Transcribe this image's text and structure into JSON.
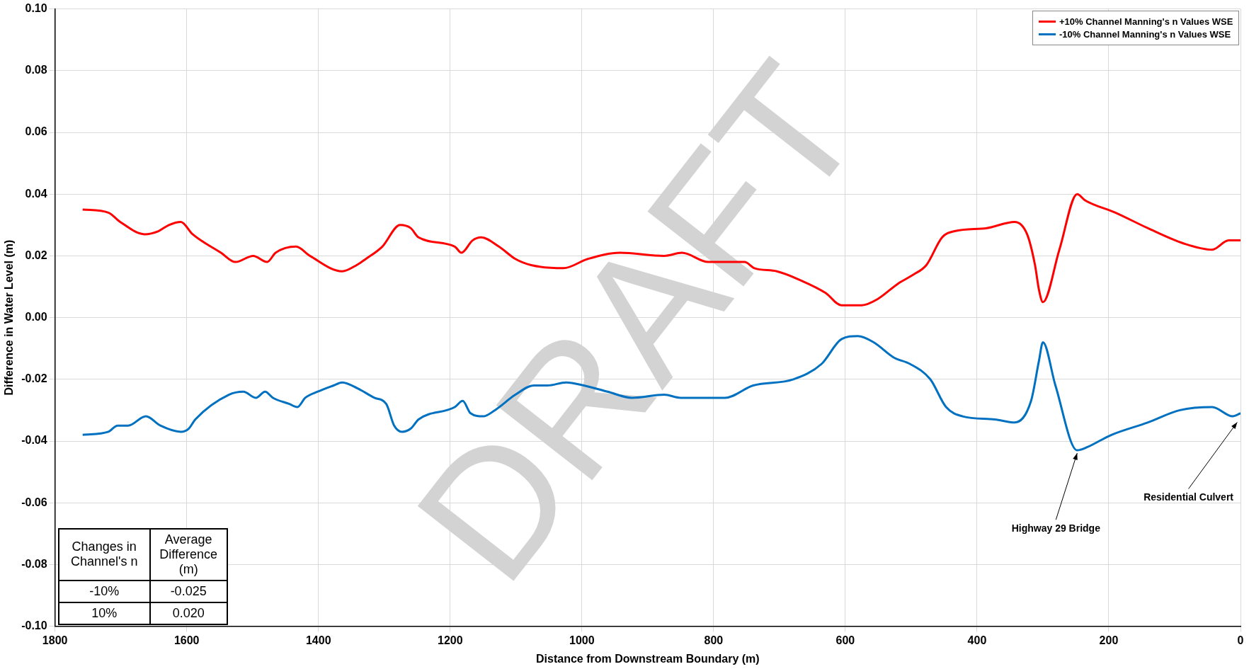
{
  "chart_data": {
    "type": "line",
    "xlabel": "Distance from Downstream Boundary (m)",
    "ylabel": "Difference in Water Level (m)",
    "xlim": [
      1800,
      0
    ],
    "xticks": [
      1800,
      1600,
      1400,
      1200,
      1000,
      800,
      600,
      400,
      200,
      0
    ],
    "ylim": [
      -0.1,
      0.1
    ],
    "yticks": [
      {
        "value": -0.1,
        "label": "-0.10"
      },
      -0.08,
      -0.06,
      -0.04,
      -0.02,
      {
        "value": 0,
        "label": "0.00"
      },
      0.02,
      0.04,
      0.06,
      0.08,
      {
        "value": 0.1,
        "label": "0.10"
      }
    ],
    "grid": true,
    "legend": "top right",
    "marker": "none",
    "line_style": "solid",
    "series": [
      {
        "name": "+10% Channel Manning's n Values WSE",
        "color": "#ff0000",
        "x": [
          1758,
          1719,
          1701,
          1664,
          1643,
          1627,
          1609,
          1591,
          1548,
          1526,
          1499,
          1478,
          1465,
          1434,
          1413,
          1364,
          1342,
          1328,
          1303,
          1276,
          1260,
          1248,
          1193,
          1183,
          1166,
          1153,
          1126,
          1101,
          1077,
          1028,
          991,
          942,
          875,
          848,
          808,
          753,
          738,
          704,
          667,
          630,
          606,
          575,
          551,
          520,
          496,
          477,
          453,
          434,
          385,
          343,
          324,
          312,
          306,
          300,
          275,
          248,
          236,
          190,
          141,
          86,
          43,
          18,
          0
        ],
        "values": [
          0.035,
          0.034,
          0.031,
          0.027,
          0.028,
          0.03,
          0.031,
          0.027,
          0.021,
          0.018,
          0.02,
          0.018,
          0.021,
          0.023,
          0.02,
          0.015,
          0.017,
          0.019,
          0.023,
          0.03,
          0.029,
          0.026,
          0.023,
          0.021,
          0.025,
          0.026,
          0.023,
          0.019,
          0.017,
          0.016,
          0.019,
          0.021,
          0.02,
          0.021,
          0.018,
          0.018,
          0.016,
          0.015,
          0.012,
          0.008,
          0.004,
          0.004,
          0.006,
          0.011,
          0.014,
          0.017,
          0.026,
          0.028,
          0.029,
          0.031,
          0.027,
          0.017,
          0.009,
          0.005,
          0.022,
          0.04,
          0.038,
          0.034,
          0.029,
          0.024,
          0.022,
          0.025,
          0.025
        ]
      },
      {
        "name": "-10% Channel Manning's n Values WSE",
        "color": "#0070c0",
        "x": [
          1758,
          1719,
          1705,
          1689,
          1662,
          1640,
          1609,
          1597,
          1587,
          1536,
          1514,
          1495,
          1481,
          1469,
          1444,
          1432,
          1420,
          1401,
          1377,
          1364,
          1340,
          1315,
          1297,
          1285,
          1273,
          1260,
          1248,
          1193,
          1181,
          1169,
          1150,
          1132,
          1101,
          1073,
          1052,
          1024,
          997,
          961,
          924,
          875,
          850,
          820,
          783,
          740,
          679,
          636,
          606,
          581,
          557,
          526,
          502,
          471,
          447,
          422,
          373,
          343,
          318,
          306,
          300,
          281,
          248,
          233,
          196,
          141,
          92,
          43,
          12,
          0
        ],
        "values": [
          -0.038,
          -0.037,
          -0.035,
          -0.035,
          -0.032,
          -0.035,
          -0.037,
          -0.036,
          -0.033,
          -0.025,
          -0.024,
          -0.026,
          -0.024,
          -0.026,
          -0.028,
          -0.029,
          -0.026,
          -0.024,
          -0.022,
          -0.021,
          -0.023,
          -0.026,
          -0.028,
          -0.035,
          -0.037,
          -0.036,
          -0.033,
          -0.029,
          -0.027,
          -0.031,
          -0.032,
          -0.03,
          -0.025,
          -0.022,
          -0.022,
          -0.021,
          -0.022,
          -0.024,
          -0.026,
          -0.025,
          -0.026,
          -0.026,
          -0.026,
          -0.022,
          -0.02,
          -0.015,
          -0.007,
          -0.006,
          -0.008,
          -0.013,
          -0.015,
          -0.02,
          -0.029,
          -0.032,
          -0.033,
          -0.034,
          -0.027,
          -0.014,
          -0.008,
          -0.022,
          -0.043,
          -0.042,
          -0.038,
          -0.034,
          -0.03,
          -0.029,
          -0.032,
          -0.031
        ]
      }
    ],
    "annotations": [
      "Changes in Channel's n",
      "Average Difference (m)",
      "-10%",
      "-0.025",
      "10%",
      "0.020",
      {
        "text": "Highway 29 Bridge",
        "x": 248,
        "y": -0.043
      },
      {
        "text": "Residential Culvert",
        "x": 5,
        "y": -0.033
      },
      "DRAFT"
    ]
  }
}
